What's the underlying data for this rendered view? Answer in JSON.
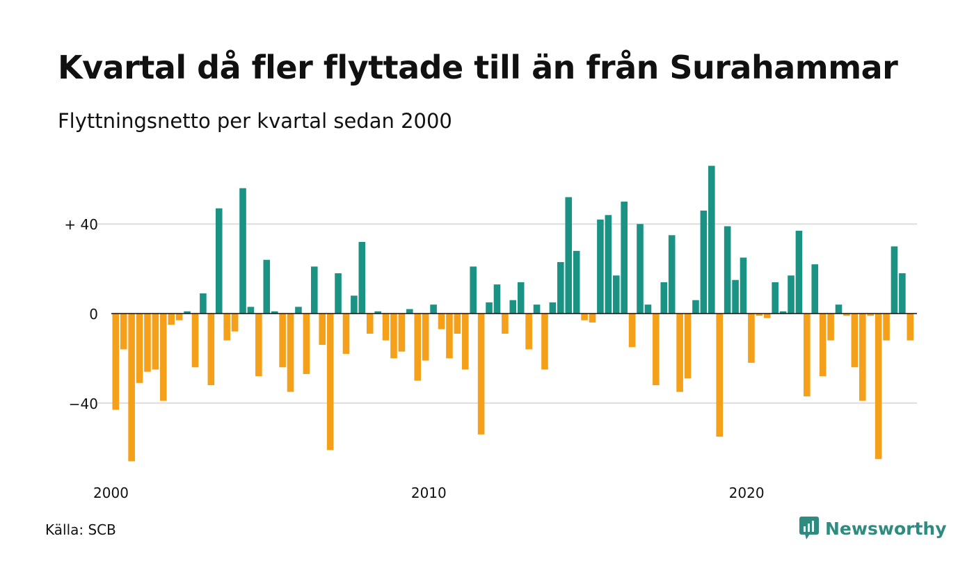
{
  "header": {
    "title": "Kvartal då fler flyttade till än från Surahammar",
    "subtitle": "Flyttningsnetto per kvartal sedan 2000"
  },
  "footer": {
    "source": "Källa: SCB",
    "brand": "Newsworthy",
    "brand_icon": "newsworthy-logo-icon"
  },
  "colors": {
    "positive": "#1b9384",
    "negative": "#f5a01a",
    "grid": "#dddddd",
    "zero_line": "#111111",
    "brand": "#2f8a80"
  },
  "chart_data": {
    "type": "bar",
    "x_start": "2000 Q1",
    "frequency": "quarterly",
    "x_ticks": [
      {
        "index": 0,
        "label": "2000"
      },
      {
        "index": 40,
        "label": "2010"
      },
      {
        "index": 80,
        "label": "2020"
      }
    ],
    "y_ticks": [
      {
        "value": 40,
        "label": "+ 40"
      },
      {
        "value": 0,
        "label": "0"
      },
      {
        "value": -40,
        "label": "−40"
      }
    ],
    "ylim": [
      -66,
      66
    ],
    "grid": true,
    "values": [
      -43,
      -16,
      -66,
      -31,
      -26,
      -25,
      -39,
      -5,
      -3,
      1,
      -24,
      9,
      -32,
      47,
      -12,
      -8,
      56,
      3,
      -28,
      24,
      1,
      -24,
      -35,
      3,
      -27,
      21,
      -14,
      -61,
      18,
      -18,
      8,
      32,
      -9,
      1,
      -12,
      -20,
      -17,
      2,
      -30,
      -21,
      4,
      -7,
      -20,
      -9,
      -25,
      21,
      -54,
      5,
      13,
      -9,
      6,
      14,
      -16,
      4,
      -25,
      5,
      23,
      52,
      28,
      -3,
      -4,
      42,
      44,
      17,
      50,
      -15,
      40,
      4,
      -32,
      14,
      35,
      -35,
      -29,
      6,
      46,
      66,
      -55,
      39,
      15,
      25,
      -22,
      -1,
      -2,
      14,
      1,
      17,
      37,
      -37,
      22,
      -28,
      -12,
      4,
      -1,
      -24,
      -39,
      -1,
      -65,
      -12,
      30,
      18,
      -12
    ]
  }
}
